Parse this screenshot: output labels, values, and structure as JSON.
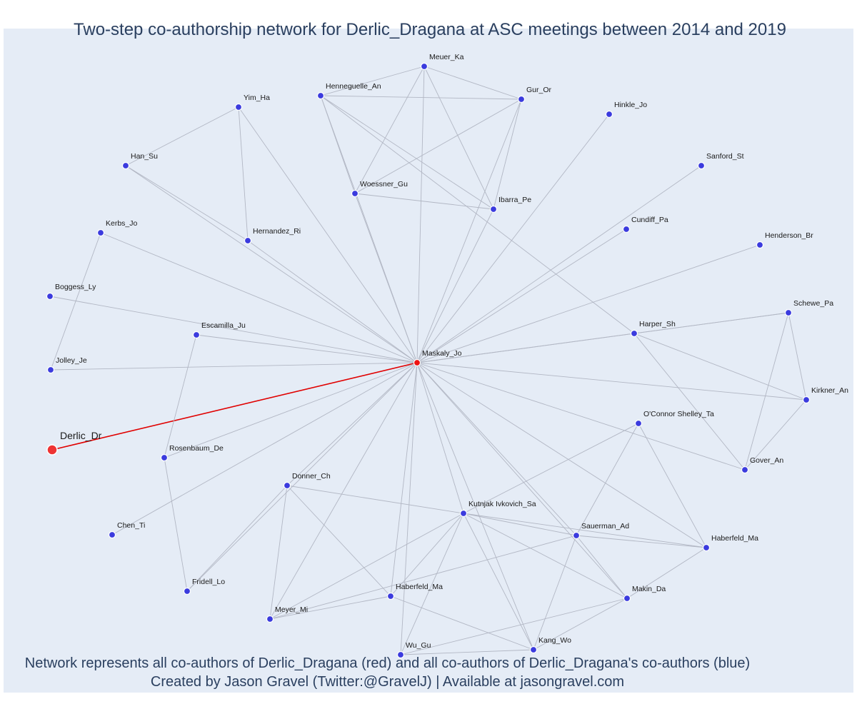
{
  "title": "Two-step co-authorship network for Derlic_Dragana at ASC meetings between 2014 and 2019",
  "footer": {
    "line1": "Network represents all co-authors of Derlic_Dragana (red) and all co-authors of Derlic_Dragana's co-authors (blue)",
    "line2": "Created by Jason Gravel (Twitter:@GravelJ) | Available at jasongravel.com"
  },
  "colors": {
    "background": "#e5ecf6",
    "edge": "#b2b7c4",
    "ego_edge": "#e00000",
    "ego_node": "#ee3333",
    "coauthor_node": "#ee1111",
    "second_degree_node": "#3b3bde",
    "text": "#2a3f5f"
  },
  "nodes": [
    {
      "id": "Derlic_Dr",
      "role": "ego"
    },
    {
      "id": "Maskaly_Jo",
      "role": "coauthor"
    },
    {
      "id": "Meuer_Ka",
      "role": "second"
    },
    {
      "id": "Henneguelle_An",
      "role": "second"
    },
    {
      "id": "Gur_Or",
      "role": "second"
    },
    {
      "id": "Yim_Ha",
      "role": "second"
    },
    {
      "id": "Hinkle_Jo",
      "role": "second"
    },
    {
      "id": "Han_Su",
      "role": "second"
    },
    {
      "id": "Sanford_St",
      "role": "second"
    },
    {
      "id": "Woessner_Gu",
      "role": "second"
    },
    {
      "id": "Ibarra_Pe",
      "role": "second"
    },
    {
      "id": "Cundiff_Pa",
      "role": "second"
    },
    {
      "id": "Kerbs_Jo",
      "role": "second"
    },
    {
      "id": "Hernandez_Ri",
      "role": "second"
    },
    {
      "id": "Henderson_Br",
      "role": "second"
    },
    {
      "id": "Boggess_Ly",
      "role": "second"
    },
    {
      "id": "Schewe_Pa",
      "role": "second"
    },
    {
      "id": "Escamilla_Ju",
      "role": "second"
    },
    {
      "id": "Harper_Sh",
      "role": "second"
    },
    {
      "id": "Jolley_Je",
      "role": "second"
    },
    {
      "id": "Kirkner_An",
      "role": "second"
    },
    {
      "id": "O'Connor Shelley_Ta",
      "role": "second"
    },
    {
      "id": "Rosenbaum_De",
      "role": "second"
    },
    {
      "id": "Gover_An",
      "role": "second"
    },
    {
      "id": "Donner_Ch",
      "role": "second"
    },
    {
      "id": "Kutnjak Ivkovich_Sa",
      "role": "second"
    },
    {
      "id": "Chen_Ti",
      "role": "second"
    },
    {
      "id": "Sauerman_Ad",
      "role": "second"
    },
    {
      "id": "Haberfeld_Ma (E)",
      "label": "Haberfeld_Ma",
      "role": "second"
    },
    {
      "id": "Makin_Da",
      "role": "second"
    },
    {
      "id": "Fridell_Lo",
      "role": "second"
    },
    {
      "id": "Haberfeld_Ma (W)",
      "label": "Haberfeld_Ma",
      "role": "second"
    },
    {
      "id": "Meyer_Mi",
      "role": "second"
    },
    {
      "id": "Kang_Wo",
      "role": "second"
    },
    {
      "id": "Wu_Gu",
      "role": "second"
    }
  ],
  "edges": [
    [
      "Derlic_Dr",
      "Maskaly_Jo"
    ],
    [
      "Maskaly_Jo",
      "Meuer_Ka"
    ],
    [
      "Maskaly_Jo",
      "Henneguelle_An"
    ],
    [
      "Maskaly_Jo",
      "Gur_Or"
    ],
    [
      "Maskaly_Jo",
      "Yim_Ha"
    ],
    [
      "Maskaly_Jo",
      "Hinkle_Jo"
    ],
    [
      "Maskaly_Jo",
      "Han_Su"
    ],
    [
      "Maskaly_Jo",
      "Sanford_St"
    ],
    [
      "Maskaly_Jo",
      "Woessner_Gu"
    ],
    [
      "Maskaly_Jo",
      "Ibarra_Pe"
    ],
    [
      "Maskaly_Jo",
      "Cundiff_Pa"
    ],
    [
      "Maskaly_Jo",
      "Kerbs_Jo"
    ],
    [
      "Maskaly_Jo",
      "Hernandez_Ri"
    ],
    [
      "Maskaly_Jo",
      "Henderson_Br"
    ],
    [
      "Maskaly_Jo",
      "Boggess_Ly"
    ],
    [
      "Maskaly_Jo",
      "Schewe_Pa"
    ],
    [
      "Maskaly_Jo",
      "Escamilla_Ju"
    ],
    [
      "Maskaly_Jo",
      "Harper_Sh"
    ],
    [
      "Maskaly_Jo",
      "Jolley_Je"
    ],
    [
      "Maskaly_Jo",
      "Kirkner_An"
    ],
    [
      "Maskaly_Jo",
      "Rosenbaum_De"
    ],
    [
      "Maskaly_Jo",
      "Gover_An"
    ],
    [
      "Maskaly_Jo",
      "Donner_Ch"
    ],
    [
      "Maskaly_Jo",
      "Kutnjak Ivkovich_Sa"
    ],
    [
      "Maskaly_Jo",
      "Chen_Ti"
    ],
    [
      "Maskaly_Jo",
      "Sauerman_Ad"
    ],
    [
      "Maskaly_Jo",
      "Haberfeld_Ma (E)"
    ],
    [
      "Maskaly_Jo",
      "Makin_Da"
    ],
    [
      "Maskaly_Jo",
      "Fridell_Lo"
    ],
    [
      "Maskaly_Jo",
      "Haberfeld_Ma (W)"
    ],
    [
      "Maskaly_Jo",
      "Meyer_Mi"
    ],
    [
      "Maskaly_Jo",
      "Kang_Wo"
    ],
    [
      "Maskaly_Jo",
      "Wu_Gu"
    ],
    [
      "Meuer_Ka",
      "Henneguelle_An"
    ],
    [
      "Meuer_Ka",
      "Gur_Or"
    ],
    [
      "Meuer_Ka",
      "Woessner_Gu"
    ],
    [
      "Meuer_Ka",
      "Ibarra_Pe"
    ],
    [
      "Henneguelle_An",
      "Gur_Or"
    ],
    [
      "Henneguelle_An",
      "Woessner_Gu"
    ],
    [
      "Henneguelle_An",
      "Ibarra_Pe"
    ],
    [
      "Henneguelle_An",
      "Harper_Sh"
    ],
    [
      "Gur_Or",
      "Woessner_Gu"
    ],
    [
      "Gur_Or",
      "Ibarra_Pe"
    ],
    [
      "Woessner_Gu",
      "Ibarra_Pe"
    ],
    [
      "Yim_Ha",
      "Han_Su"
    ],
    [
      "Yim_Ha",
      "Hernandez_Ri"
    ],
    [
      "Han_Su",
      "Hernandez_Ri"
    ],
    [
      "Kerbs_Jo",
      "Jolley_Je"
    ],
    [
      "Escamilla_Ju",
      "Rosenbaum_De"
    ],
    [
      "Rosenbaum_De",
      "Fridell_Lo"
    ],
    [
      "Harper_Sh",
      "Schewe_Pa"
    ],
    [
      "Harper_Sh",
      "Kirkner_An"
    ],
    [
      "Harper_Sh",
      "Gover_An"
    ],
    [
      "Schewe_Pa",
      "Kirkner_An"
    ],
    [
      "Schewe_Pa",
      "Gover_An"
    ],
    [
      "Kirkner_An",
      "Gover_An"
    ],
    [
      "O'Connor Shelley_Ta",
      "Kutnjak Ivkovich_Sa"
    ],
    [
      "O'Connor Shelley_Ta",
      "Sauerman_Ad"
    ],
    [
      "O'Connor Shelley_Ta",
      "Haberfeld_Ma (E)"
    ],
    [
      "Donner_Ch",
      "Kutnjak Ivkovich_Sa"
    ],
    [
      "Donner_Ch",
      "Haberfeld_Ma (W)"
    ],
    [
      "Donner_Ch",
      "Meyer_Mi"
    ],
    [
      "Donner_Ch",
      "Fridell_Lo"
    ],
    [
      "Kutnjak Ivkovich_Sa",
      "Sauerman_Ad"
    ],
    [
      "Kutnjak Ivkovich_Sa",
      "Haberfeld_Ma (E)"
    ],
    [
      "Kutnjak Ivkovich_Sa",
      "Makin_Da"
    ],
    [
      "Kutnjak Ivkovich_Sa",
      "Haberfeld_Ma (W)"
    ],
    [
      "Kutnjak Ivkovich_Sa",
      "Meyer_Mi"
    ],
    [
      "Kutnjak Ivkovich_Sa",
      "Kang_Wo"
    ],
    [
      "Kutnjak Ivkovich_Sa",
      "Wu_Gu"
    ],
    [
      "Sauerman_Ad",
      "Haberfeld_Ma (E)"
    ],
    [
      "Sauerman_Ad",
      "Makin_Da"
    ],
    [
      "Sauerman_Ad",
      "Meyer_Mi"
    ],
    [
      "Sauerman_Ad",
      "Kang_Wo"
    ],
    [
      "Haberfeld_Ma (E)",
      "Makin_Da"
    ],
    [
      "Makin_Da",
      "Kang_Wo"
    ],
    [
      "Makin_Da",
      "Wu_Gu"
    ],
    [
      "Haberfeld_Ma (W)",
      "Meyer_Mi"
    ],
    [
      "Haberfeld_Ma (W)",
      "Kang_Wo"
    ],
    [
      "Kang_Wo",
      "Wu_Gu"
    ]
  ]
}
